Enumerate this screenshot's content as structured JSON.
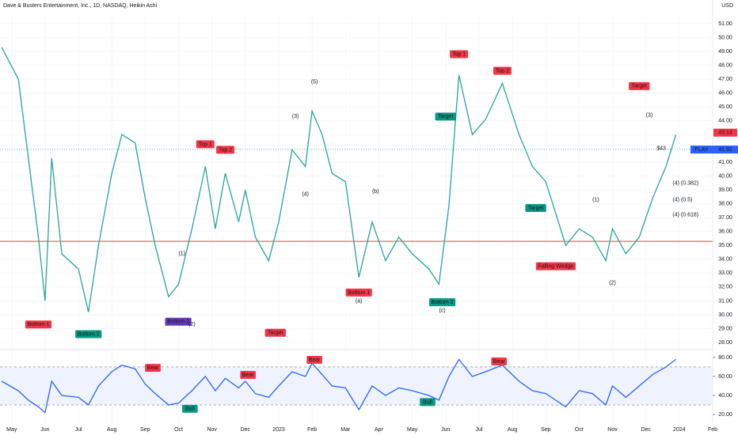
{
  "chart_data": {
    "type": "line",
    "title": "Dave & Busters Entertainment, Inc., 1D, NASDAQ, Heikin Ashi",
    "currency": "USD",
    "x": [
      -0.3,
      0.2,
      0.5,
      0.8,
      1.0,
      1.2,
      1.5,
      2.0,
      2.3,
      2.6,
      3.0,
      3.3,
      3.7,
      4.0,
      4.3,
      4.7,
      5.0,
      5.4,
      5.8,
      6.1,
      6.4,
      6.8,
      7.0,
      7.3,
      7.7,
      8.0,
      8.4,
      8.8,
      9.0,
      9.3,
      9.6,
      10.0,
      10.4,
      10.8,
      11.2,
      11.6,
      12.0,
      12.5,
      12.8,
      13.1,
      13.4,
      13.8,
      14.2,
      14.7,
      15.2,
      15.6,
      16.0,
      16.3,
      16.6,
      17.0,
      17.4,
      17.8,
      18.0,
      18.4,
      18.8,
      19.2,
      19.6,
      19.9
    ],
    "series": [
      {
        "name": "PLAY",
        "color": "#26a69a",
        "values": [
          49.3,
          47,
          41.3,
          35.6,
          31,
          41.3,
          34.4,
          33.3,
          30.2,
          35,
          40.2,
          43,
          42.4,
          38.4,
          35,
          31.3,
          32.2,
          36.2,
          40.7,
          36.2,
          40.2,
          36.7,
          39,
          35.6,
          33.9,
          36.7,
          41.9,
          40.7,
          44.7,
          43,
          40.2,
          39.6,
          32.7,
          36.7,
          33.9,
          35.6,
          34.4,
          33.3,
          32.2,
          37.9,
          47.3,
          43,
          44.1,
          46.7,
          43,
          40.7,
          39.6,
          37.3,
          35,
          36.2,
          35.6,
          33.9,
          36.2,
          34.4,
          35.6,
          38.4,
          40.7,
          43
        ]
      },
      {
        "name": "RSI",
        "color": "#2962ff",
        "axis": "y2",
        "values": [
          55,
          45,
          35,
          28,
          22,
          55,
          40,
          38,
          30,
          50,
          65,
          72,
          68,
          52,
          42,
          30,
          32,
          45,
          60,
          45,
          58,
          48,
          55,
          42,
          38,
          50,
          65,
          60,
          74,
          62,
          50,
          48,
          25,
          50,
          40,
          48,
          45,
          40,
          35,
          60,
          78,
          60,
          65,
          72,
          55,
          45,
          42,
          35,
          28,
          45,
          42,
          30,
          50,
          38,
          50,
          62,
          70,
          78
        ]
      }
    ],
    "xlim": [
      -0.35,
      21.0
    ],
    "xticks": [
      {
        "value": 0,
        "label": "May"
      },
      {
        "value": 1,
        "label": "Jun"
      },
      {
        "value": 2,
        "label": "Jul"
      },
      {
        "value": 3,
        "label": "Aug"
      },
      {
        "value": 4,
        "label": "Sep"
      },
      {
        "value": 5,
        "label": "Oct"
      },
      {
        "value": 6,
        "label": "Nov"
      },
      {
        "value": 7,
        "label": "Dec"
      },
      {
        "value": 8,
        "label": "2023"
      },
      {
        "value": 9,
        "label": "Feb"
      },
      {
        "value": 10,
        "label": "Mar"
      },
      {
        "value": 11,
        "label": "Apr"
      },
      {
        "value": 12,
        "label": "May"
      },
      {
        "value": 13,
        "label": "Jun"
      },
      {
        "value": 14,
        "label": "Jul"
      },
      {
        "value": 15,
        "label": "Aug"
      },
      {
        "value": 16,
        "label": "Sep"
      },
      {
        "value": 17,
        "label": "Oct"
      },
      {
        "value": 18,
        "label": "Nov"
      },
      {
        "value": 19,
        "label": "Dec"
      },
      {
        "value": 20,
        "label": "2024"
      },
      {
        "value": 21,
        "label": "Feb"
      }
    ],
    "ylim": [
      27.6,
      51.57
    ],
    "yticks": [
      {
        "value": 28,
        "label": "28.00"
      },
      {
        "value": 29,
        "label": "29.00"
      },
      {
        "value": 30,
        "label": "30.00"
      },
      {
        "value": 31,
        "label": "31.00"
      },
      {
        "value": 32,
        "label": "32.00"
      },
      {
        "value": 33,
        "label": "33.00"
      },
      {
        "value": 34,
        "label": "34.00"
      },
      {
        "value": 35,
        "label": "35.00"
      },
      {
        "value": 36,
        "label": "36.00"
      },
      {
        "value": 37,
        "label": "37.00"
      },
      {
        "value": 38,
        "label": "38.00"
      },
      {
        "value": 39,
        "label": "39.00"
      },
      {
        "value": 40,
        "label": "40.00"
      },
      {
        "value": 41,
        "label": "41.00"
      },
      {
        "value": 42,
        "label": "42.00"
      },
      {
        "value": 43,
        "label": "43.00"
      },
      {
        "value": 44,
        "label": "44.00"
      },
      {
        "value": 45,
        "label": "45.00"
      },
      {
        "value": 46,
        "label": "46.00"
      },
      {
        "value": 47,
        "label": "47.00"
      },
      {
        "value": 48,
        "label": "48.00"
      },
      {
        "value": 49,
        "label": "49.00"
      },
      {
        "value": 50,
        "label": "50.00"
      },
      {
        "value": 51,
        "label": "51.00"
      }
    ],
    "y2lim": [
      9.2,
      85.8
    ],
    "y2ticks": [
      {
        "value": 20,
        "label": "20.00"
      },
      {
        "value": 40,
        "label": "40.00"
      },
      {
        "value": 60,
        "label": "60.00"
      },
      {
        "value": 80,
        "label": "80.00"
      }
    ],
    "rsi_band": [
      30,
      70
    ],
    "levels": [
      {
        "value": 35.3,
        "color": "#f23645"
      }
    ],
    "high_price": 43.14,
    "last_price": {
      "symbol": "PLAY",
      "value": 41.92
    },
    "annotations": [
      {
        "text": "Top 1",
        "x": 5.8,
        "y": 42.3,
        "color": "#f23645"
      },
      {
        "text": "Top 2",
        "x": 6.4,
        "y": 41.9,
        "color": "#f23645"
      },
      {
        "text": "Top 1",
        "x": 13.4,
        "y": 48.8,
        "color": "#f23645"
      },
      {
        "text": "Top 2",
        "x": 14.7,
        "y": 47.6,
        "color": "#f23645"
      },
      {
        "text": "Bottom 1",
        "x": 0.8,
        "y": 29.3,
        "color": "#f23645"
      },
      {
        "text": "Bottom 2",
        "x": 2.3,
        "y": 28.6,
        "color": "#089981"
      },
      {
        "text": "Bottom 2",
        "x": 4.99,
        "y": 29.5,
        "color": "#673ab7"
      },
      {
        "text": "Bottom 1",
        "x": 10.4,
        "y": 31.6,
        "color": "#f23645"
      },
      {
        "text": "Bottom 2",
        "x": 12.9,
        "y": 30.9,
        "color": "#089981"
      },
      {
        "text": "Target",
        "x": 13.0,
        "y": 44.3,
        "color": "#089981"
      },
      {
        "text": "Target",
        "x": 15.7,
        "y": 37.7,
        "color": "#089981"
      },
      {
        "text": "Target",
        "x": 18.8,
        "y": 46.5,
        "color": "#f23645"
      },
      {
        "text": "Target",
        "x": 7.9,
        "y": 28.7,
        "color": "#f23645"
      },
      {
        "text": "Falling Wedge",
        "x": 16.3,
        "y": 33.5,
        "color": "#f23645"
      },
      {
        "text": "(5)",
        "x": 9.07,
        "y": 46.8,
        "color": "wave"
      },
      {
        "text": "(3)",
        "x": 8.5,
        "y": 44.3,
        "color": "wave"
      },
      {
        "text": "(4)",
        "x": 8.8,
        "y": 38.7,
        "color": "wave"
      },
      {
        "text": "(b)",
        "x": 10.9,
        "y": 38.9,
        "color": "wave"
      },
      {
        "text": "(a)",
        "x": 10.4,
        "y": 31,
        "color": "wave"
      },
      {
        "text": "(c)",
        "x": 12.9,
        "y": 30.3,
        "color": "wave"
      },
      {
        "text": "(1)",
        "x": 5.1,
        "y": 34.4,
        "color": "wave"
      },
      {
        "text": "(2)",
        "x": 5.4,
        "y": 29.3,
        "color": "wave"
      },
      {
        "text": "(3)",
        "x": 19.1,
        "y": 44.4,
        "color": "wave"
      },
      {
        "text": "(1)",
        "x": 17.5,
        "y": 38.3,
        "color": "wave"
      },
      {
        "text": "(2)",
        "x": 18.0,
        "y": 32.3,
        "color": "wave"
      },
      {
        "text": "$43",
        "x": 19.46,
        "y": 42.0,
        "color": "big"
      },
      {
        "text": "(4) (0.382)",
        "x": 19.8,
        "y": 39.5,
        "color": "fib"
      },
      {
        "text": "(4) (0.5)",
        "x": 19.8,
        "y": 38.3,
        "color": "fib"
      },
      {
        "text": "(4) (0.618)",
        "x": 19.8,
        "y": 37.2,
        "color": "fib"
      }
    ],
    "rsi_annotations": [
      {
        "text": "Bear",
        "x": 4.23,
        "y": 69,
        "color": "#f23645"
      },
      {
        "text": "Bear",
        "x": 7.08,
        "y": 61.7,
        "color": "#f23645"
      },
      {
        "text": "Bear",
        "x": 9.07,
        "y": 77.5,
        "color": "#f23645"
      },
      {
        "text": "Bear",
        "x": 14.6,
        "y": 75.8,
        "color": "#f23645"
      },
      {
        "text": "Bull",
        "x": 5.34,
        "y": 26,
        "color": "#089981"
      },
      {
        "text": "Bull",
        "x": 12.46,
        "y": 33,
        "color": "#089981"
      }
    ]
  }
}
